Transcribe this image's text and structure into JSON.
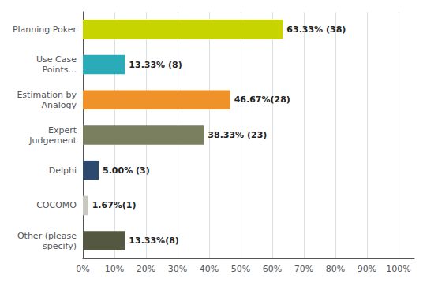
{
  "chart_data": {
    "type": "bar",
    "orientation": "horizontal",
    "categories": [
      "Planning Poker",
      "Use Case\nPoints...",
      "Estimation by\nAnalogy",
      "Expert\nJudgement",
      "Delphi",
      "COCOMO",
      "Other (please\nspecify)"
    ],
    "values": [
      63.33,
      13.33,
      46.67,
      38.33,
      5.0,
      1.67,
      13.33
    ],
    "value_labels": [
      "63.33% (38)",
      "13.33% (8)",
      "46.67%(28)",
      "38.33% (23)",
      "5.00% (3)",
      "1.67%(1)",
      "13.33%(8)"
    ],
    "data_labels": true,
    "colors": [
      "#c8d400",
      "#2aacb8",
      "#f0922a",
      "#7a7f60",
      "#2d4a6e",
      "#c8c8c0",
      "#555840"
    ],
    "xlim": [
      0,
      105
    ],
    "xticks": [
      {
        "value": 0,
        "label": "0%"
      },
      {
        "value": 10,
        "label": "10%"
      },
      {
        "value": 20,
        "label": "20%"
      },
      {
        "value": 30,
        "label": "30%"
      },
      {
        "value": 40,
        "label": "40%"
      },
      {
        "value": 50,
        "label": "50%"
      },
      {
        "value": 60,
        "label": "60%"
      },
      {
        "value": 70,
        "label": "70%"
      },
      {
        "value": 80,
        "label": "80%"
      },
      {
        "value": 90,
        "label": "90%"
      },
      {
        "value": 100,
        "label": "100%"
      }
    ],
    "grid": true
  }
}
